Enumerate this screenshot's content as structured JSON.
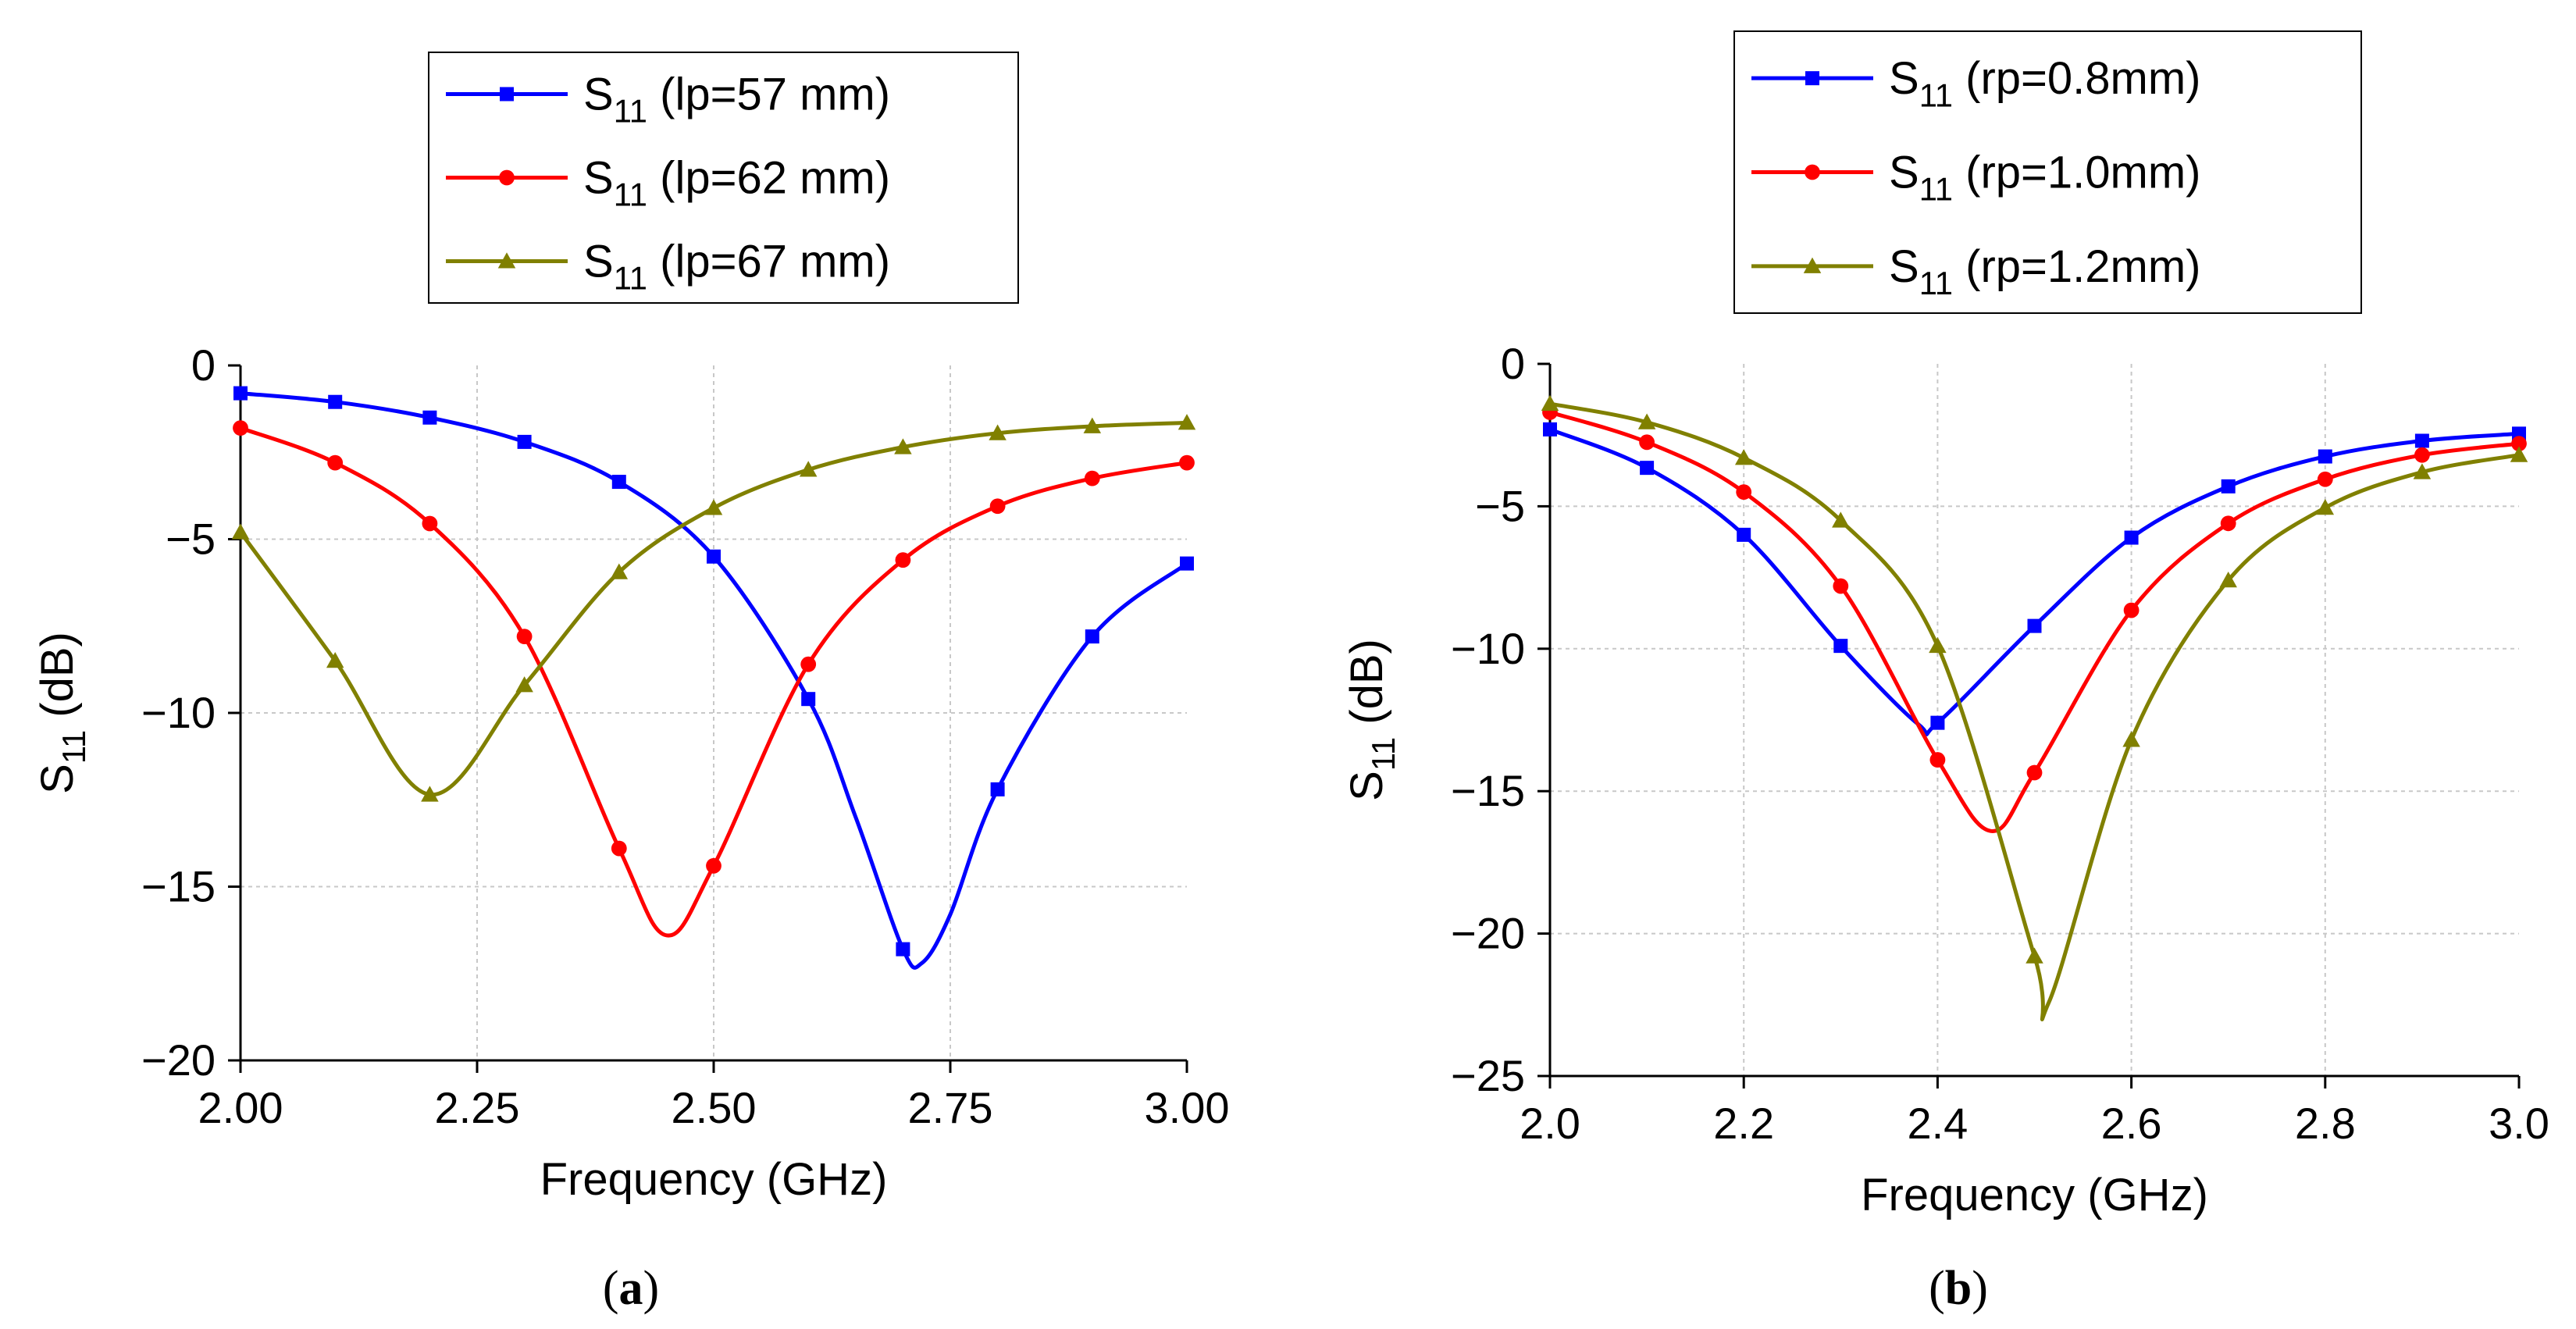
{
  "chart_data": [
    {
      "type": "line",
      "panel_label": "(a)",
      "xlabel": "Frequency (GHz)",
      "ylabel": {
        "main": "S",
        "sub": "11",
        "rest": " (dB)"
      },
      "xlim": [
        2.0,
        3.0
      ],
      "ylim": [
        -20,
        0
      ],
      "xticks": [
        2.0,
        2.25,
        2.5,
        2.75,
        3.0
      ],
      "xtick_labels": [
        "2.00",
        "2.25",
        "2.50",
        "2.75",
        "3.00"
      ],
      "yticks": [
        0,
        -5,
        -10,
        -15,
        -20
      ],
      "ytick_labels": [
        "0",
        "−5",
        "−10",
        "−15",
        "−20"
      ],
      "grid": true,
      "legend_position": "top-center, above plot",
      "series": [
        {
          "name": "lp=57 mm",
          "legend": {
            "main": "S",
            "sub": "11",
            "rest": " (lp=57 mm)"
          },
          "color": "#0000ff",
          "marker": "square",
          "x": [
            2.0,
            2.1,
            2.2,
            2.3,
            2.4,
            2.5,
            2.6,
            2.65,
            2.7,
            2.72,
            2.75,
            2.8,
            2.9,
            3.0
          ],
          "y": [
            -0.8,
            -1.05,
            -1.5,
            -2.2,
            -3.35,
            -5.5,
            -9.6,
            -13.0,
            -16.8,
            -17.2,
            -15.8,
            -12.2,
            -7.8,
            -5.7
          ],
          "marker_x": [
            2.0,
            2.1,
            2.2,
            2.3,
            2.4,
            2.5,
            2.6,
            2.7,
            2.8,
            2.9,
            3.0
          ],
          "marker_y": [
            -0.8,
            -1.05,
            -1.5,
            -2.2,
            -3.35,
            -5.5,
            -9.6,
            -16.8,
            -12.2,
            -7.8,
            -5.7
          ]
        },
        {
          "name": "lp=62 mm",
          "legend": {
            "main": "S",
            "sub": "11",
            "rest": " (lp=62 mm)"
          },
          "color": "#ff0000",
          "marker": "circle",
          "x": [
            2.0,
            2.1,
            2.2,
            2.3,
            2.4,
            2.45,
            2.5,
            2.6,
            2.7,
            2.8,
            2.9,
            3.0
          ],
          "y": [
            -1.8,
            -2.8,
            -4.55,
            -7.8,
            -13.9,
            -16.4,
            -14.4,
            -8.6,
            -5.6,
            -4.05,
            -3.25,
            -2.8
          ],
          "marker_x": [
            2.0,
            2.1,
            2.2,
            2.3,
            2.4,
            2.5,
            2.6,
            2.7,
            2.8,
            2.9,
            3.0
          ],
          "marker_y": [
            -1.8,
            -2.8,
            -4.55,
            -7.8,
            -13.9,
            -14.4,
            -8.6,
            -5.6,
            -4.05,
            -3.25,
            -2.8
          ]
        },
        {
          "name": "lp=67 mm",
          "legend": {
            "main": "S",
            "sub": "11",
            "rest": " (lp=67 mm)"
          },
          "color": "#808000",
          "marker": "triangle",
          "x": [
            2.0,
            2.1,
            2.2,
            2.3,
            2.4,
            2.5,
            2.6,
            2.7,
            2.8,
            2.9,
            3.0
          ],
          "y": [
            -4.8,
            -8.5,
            -12.35,
            -9.2,
            -5.95,
            -4.1,
            -3.0,
            -2.35,
            -1.95,
            -1.75,
            -1.65
          ],
          "marker_x": [
            2.0,
            2.1,
            2.2,
            2.3,
            2.4,
            2.5,
            2.6,
            2.7,
            2.8,
            2.9,
            3.0
          ],
          "marker_y": [
            -4.8,
            -8.5,
            -12.35,
            -9.2,
            -5.95,
            -4.1,
            -3.0,
            -2.35,
            -1.95,
            -1.75,
            -1.65
          ]
        }
      ]
    },
    {
      "type": "line",
      "panel_label": "(b)",
      "xlabel": "Frequency (GHz)",
      "ylabel": {
        "main": "S",
        "sub": "11",
        "rest": " (dB)"
      },
      "xlim": [
        2.0,
        3.0
      ],
      "ylim": [
        -25,
        0
      ],
      "xticks": [
        2.0,
        2.2,
        2.4,
        2.6,
        2.8,
        3.0
      ],
      "xtick_labels": [
        "2.0",
        "2.2",
        "2.4",
        "2.6",
        "2.8",
        "3.0"
      ],
      "yticks": [
        0,
        -5,
        -10,
        -15,
        -20,
        -25
      ],
      "ytick_labels": [
        "0",
        "−5",
        "−10",
        "−15",
        "−20",
        "−25"
      ],
      "grid": true,
      "legend_position": "top-center, above plot",
      "series": [
        {
          "name": "rp=0.8mm",
          "legend": {
            "main": "S",
            "sub": "11",
            "rest": " (rp=0.8mm)"
          },
          "color": "#0000ff",
          "marker": "square",
          "x": [
            2.0,
            2.1,
            2.2,
            2.3,
            2.38,
            2.4,
            2.5,
            2.6,
            2.7,
            2.8,
            2.9,
            3.0
          ],
          "y": [
            -2.3,
            -3.65,
            -6.0,
            -9.9,
            -12.65,
            -12.6,
            -9.2,
            -6.1,
            -4.3,
            -3.25,
            -2.7,
            -2.45
          ],
          "marker_x": [
            2.0,
            2.1,
            2.2,
            2.3,
            2.4,
            2.5,
            2.6,
            2.7,
            2.8,
            2.9,
            3.0
          ],
          "marker_y": [
            -2.3,
            -3.65,
            -6.0,
            -9.9,
            -12.6,
            -9.2,
            -6.1,
            -4.3,
            -3.25,
            -2.7,
            -2.45
          ]
        },
        {
          "name": "rp=1.0mm",
          "legend": {
            "main": "S",
            "sub": "11",
            "rest": " (rp=1.0mm)"
          },
          "color": "#ff0000",
          "marker": "circle",
          "x": [
            2.0,
            2.1,
            2.2,
            2.3,
            2.4,
            2.455,
            2.5,
            2.6,
            2.7,
            2.8,
            2.9,
            3.0
          ],
          "y": [
            -1.7,
            -2.75,
            -4.5,
            -7.8,
            -13.9,
            -16.4,
            -14.35,
            -8.65,
            -5.6,
            -4.05,
            -3.2,
            -2.8
          ],
          "marker_x": [
            2.0,
            2.1,
            2.2,
            2.3,
            2.4,
            2.5,
            2.6,
            2.7,
            2.8,
            2.9,
            3.0
          ],
          "marker_y": [
            -1.7,
            -2.75,
            -4.5,
            -7.8,
            -13.9,
            -14.35,
            -8.65,
            -5.6,
            -4.05,
            -3.2,
            -2.8
          ]
        },
        {
          "name": "rp=1.2mm",
          "legend": {
            "main": "S",
            "sub": "11",
            "rest": " (rp=1.2mm)"
          },
          "color": "#808000",
          "marker": "triangle",
          "x": [
            2.0,
            2.1,
            2.2,
            2.3,
            2.4,
            2.5,
            2.515,
            2.6,
            2.7,
            2.8,
            2.9,
            3.0
          ],
          "y": [
            -1.4,
            -2.05,
            -3.3,
            -5.5,
            -9.9,
            -20.8,
            -22.4,
            -13.2,
            -7.6,
            -5.05,
            -3.8,
            -3.2
          ],
          "marker_x": [
            2.0,
            2.1,
            2.2,
            2.3,
            2.4,
            2.5,
            2.6,
            2.7,
            2.8,
            2.9,
            3.0
          ],
          "marker_y": [
            -1.4,
            -2.05,
            -3.3,
            -5.5,
            -9.9,
            -20.8,
            -13.2,
            -7.6,
            -5.05,
            -3.8,
            -3.2
          ]
        }
      ]
    }
  ]
}
